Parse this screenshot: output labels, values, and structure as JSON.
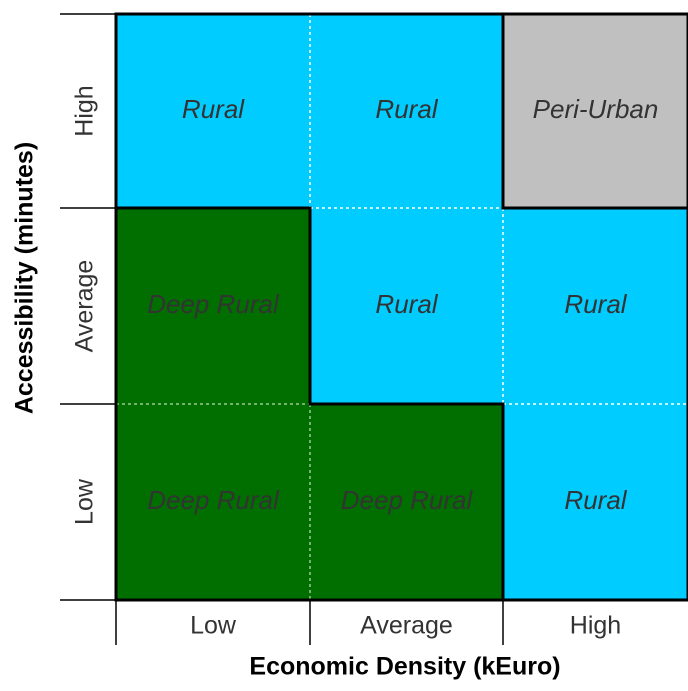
{
  "x_axis": {
    "title": "Economic Density (kEuro)",
    "labels": [
      "Low",
      "Average",
      "High"
    ]
  },
  "y_axis": {
    "title": "Accessibility (minutes)",
    "labels": [
      "High",
      "Average",
      "Low"
    ]
  },
  "cells": [
    [
      {
        "label": "Rural",
        "color": "#00ccff"
      },
      {
        "label": "Rural",
        "color": "#00ccff"
      },
      {
        "label": "Peri-Urban",
        "color": "#c0c0c0"
      }
    ],
    [
      {
        "label": "Deep Rural",
        "color": "#006f00"
      },
      {
        "label": "Rural",
        "color": "#00ccff"
      },
      {
        "label": "Rural",
        "color": "#00ccff"
      }
    ],
    [
      {
        "label": "Deep Rural",
        "color": "#006f00"
      },
      {
        "label": "Deep Rural",
        "color": "#006f00"
      },
      {
        "label": "Rural",
        "color": "#00ccff"
      }
    ]
  ]
}
